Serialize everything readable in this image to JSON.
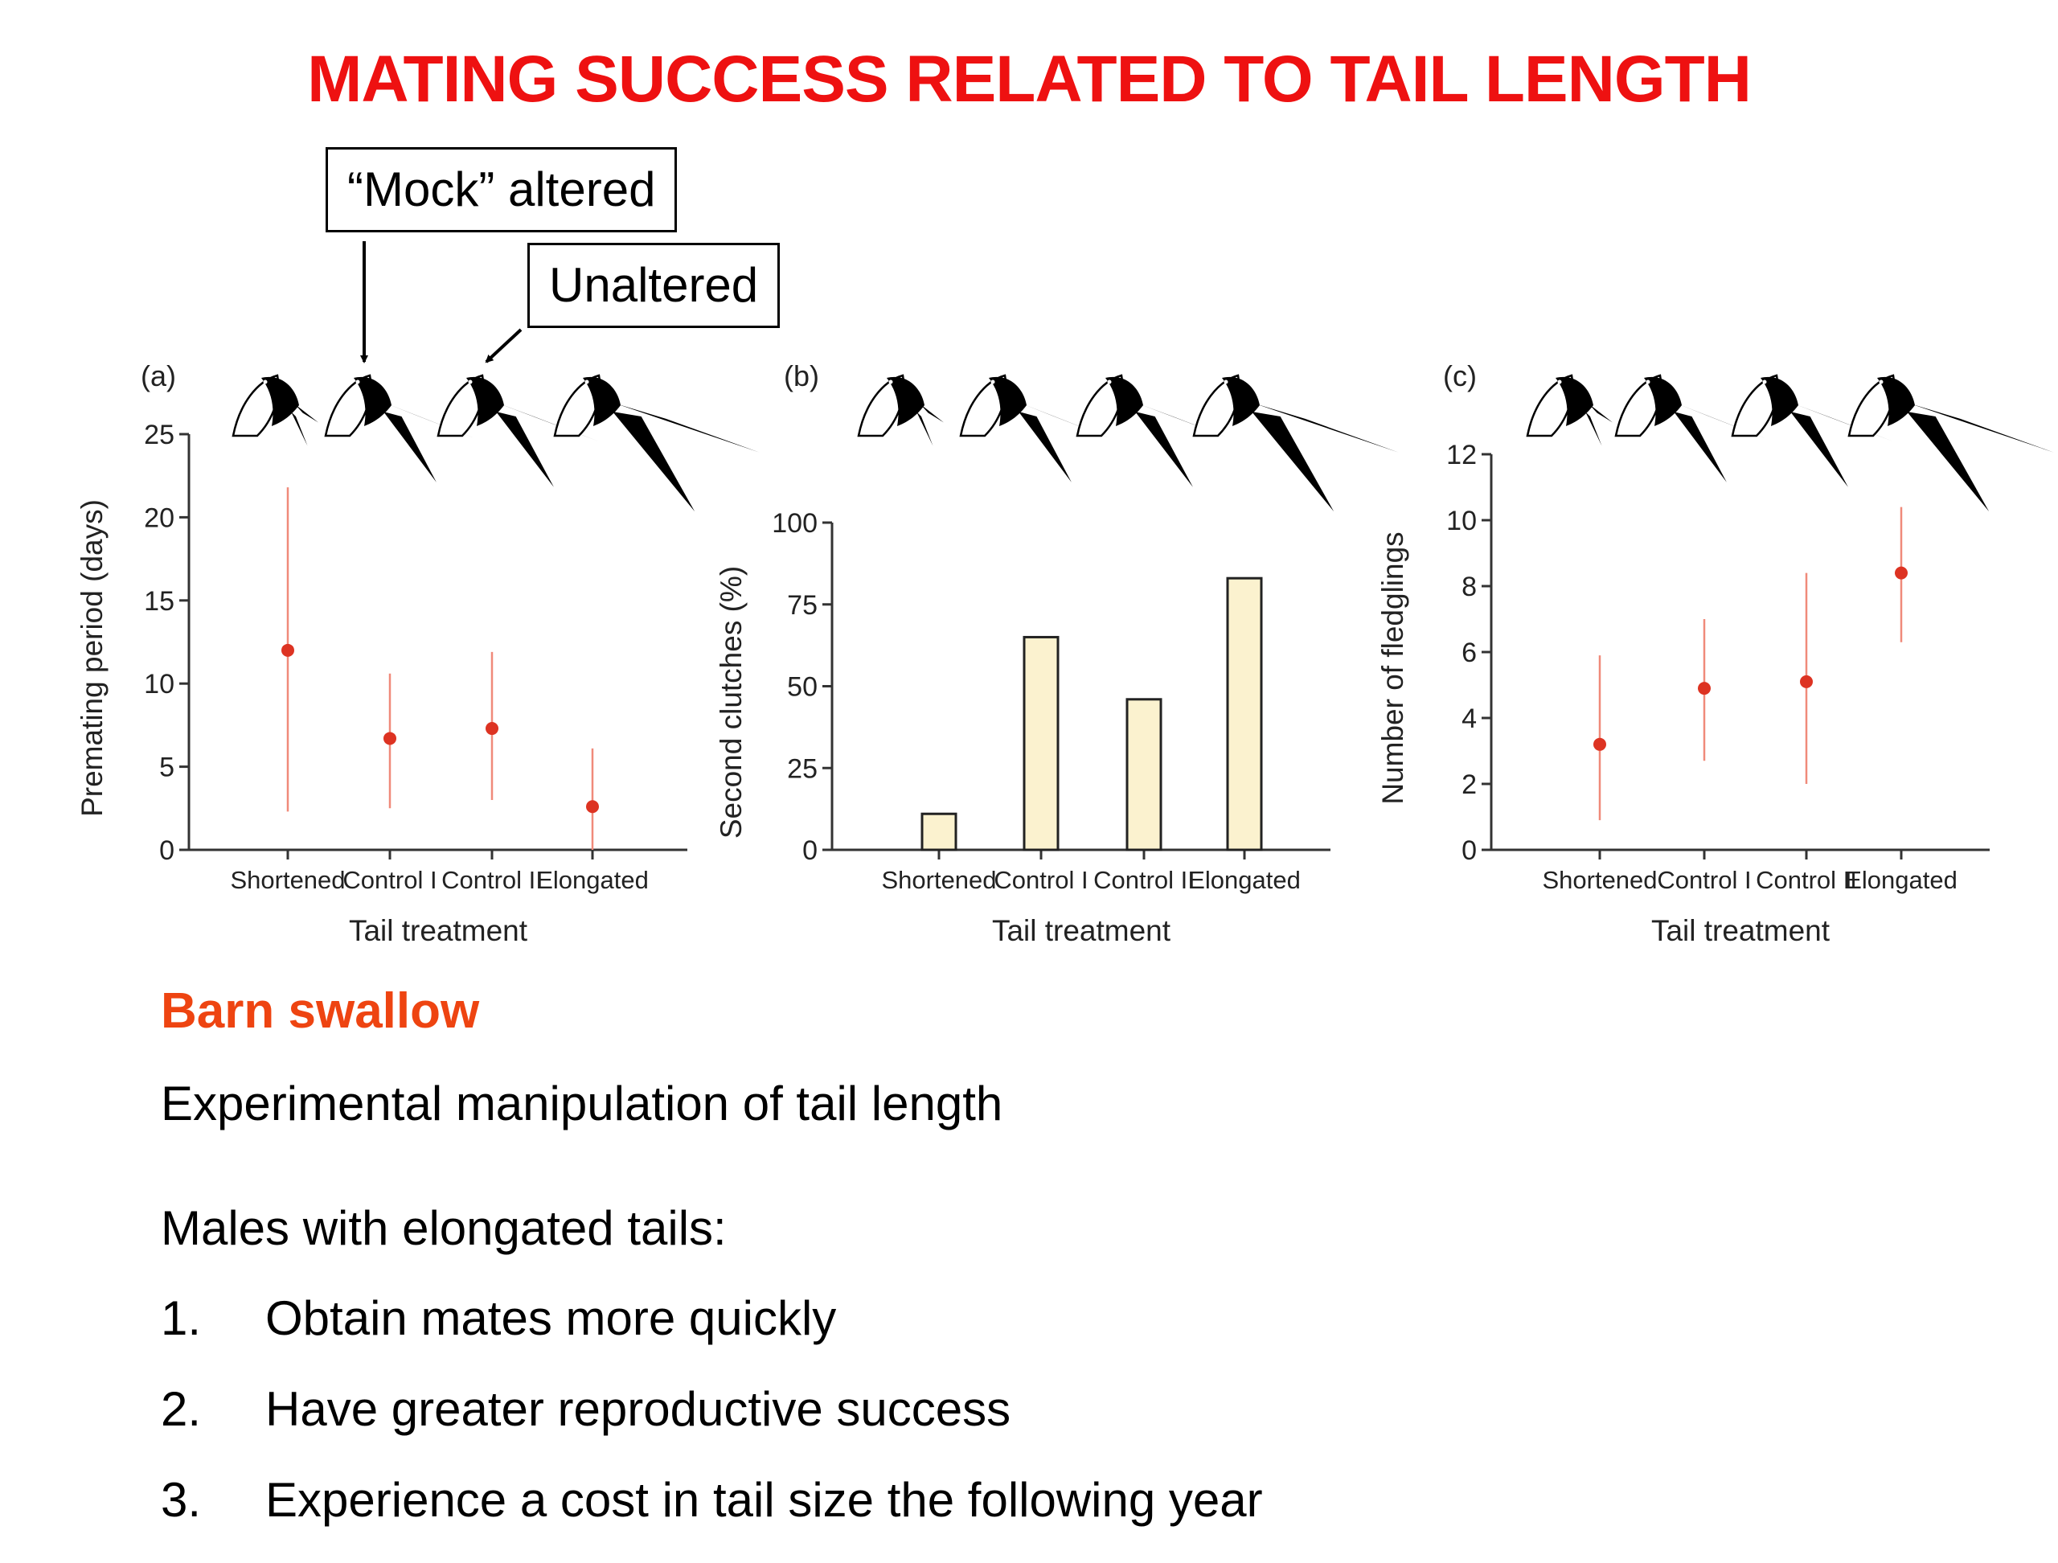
{
  "title": "MATING SUCCESS RELATED TO TAIL LENGTH",
  "annotations": {
    "mock": "“Mock” altered",
    "unaltered": "Unaltered"
  },
  "chart_data": [
    {
      "panel": "(a)",
      "type": "scatter",
      "categories": [
        "Shortened",
        "Control I",
        "Control II",
        "Elongated"
      ],
      "values": [
        12,
        6.7,
        7.3,
        2.6
      ],
      "error_low": [
        2.3,
        2.5,
        3.0,
        0
      ],
      "error_high": [
        21.8,
        10.6,
        11.9,
        6.1
      ],
      "xlabel": "Tail treatment",
      "ylabel": "Premating period (days)",
      "ylim": [
        0,
        25
      ],
      "yticks": [
        0,
        5,
        10,
        15,
        20,
        25
      ],
      "color": "#dd3322"
    },
    {
      "panel": "(b)",
      "type": "bar",
      "categories": [
        "Shortened",
        "Control I",
        "Control II",
        "Elongated"
      ],
      "values": [
        11,
        65,
        46,
        83
      ],
      "xlabel": "Tail treatment",
      "ylabel": "Second clutches (%)",
      "ylim": [
        0,
        100
      ],
      "yticks": [
        0,
        25,
        50,
        75,
        100
      ],
      "color": "#fbf2cf"
    },
    {
      "panel": "(c)",
      "type": "scatter",
      "categories": [
        "Shortened",
        "Control I",
        "Control II",
        "Elongated"
      ],
      "values": [
        3.2,
        4.9,
        5.1,
        8.4
      ],
      "error_low": [
        0.9,
        2.7,
        2.0,
        6.3
      ],
      "error_high": [
        5.9,
        7.0,
        8.4,
        10.4
      ],
      "xlabel": "Tail treatment",
      "ylabel": "Number of fledglings",
      "ylim": [
        0,
        12
      ],
      "yticks": [
        0,
        2,
        4,
        6,
        8,
        10,
        12
      ],
      "color": "#dd3322"
    }
  ],
  "body": {
    "subtitle": "Barn swallow",
    "intro": "Experimental manipulation of tail length",
    "lead": "Males with elongated tails:",
    "points": [
      {
        "num": "1.",
        "text": "Obtain mates more quickly"
      },
      {
        "num": "2.",
        "text": "Have greater reproductive success"
      },
      {
        "num": "3.",
        "text": "Experience a cost in tail size the following year"
      }
    ]
  }
}
